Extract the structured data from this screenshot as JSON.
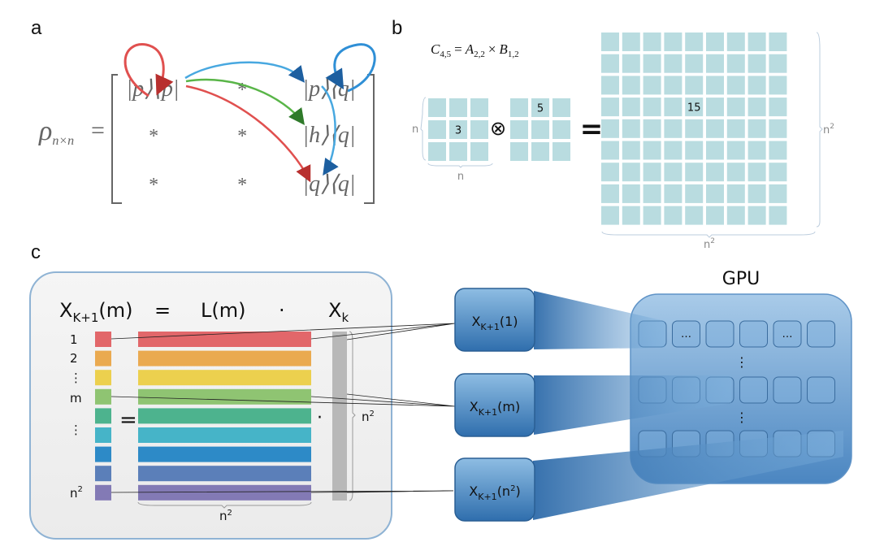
{
  "panels": {
    "a": "a",
    "b": "b",
    "c": "c"
  },
  "panel_a": {
    "lhs_symbol": "ρ",
    "lhs_subscript": "n×n",
    "equals": "=",
    "entries": [
      "|p⟩⟨p|",
      "*",
      "|p⟩⟨q|",
      "*",
      "*",
      "|h⟩⟨q|",
      "*",
      "*",
      "|q⟩⟨q|"
    ],
    "arrow_colors": {
      "red": "#e0504f",
      "blue": "#2f8fd6",
      "green": "#59b548"
    }
  },
  "panel_b": {
    "formula": {
      "c": "C",
      "c_sub": "4,5",
      "eq": "=",
      "a": "A",
      "a_sub": "2,2",
      "times": "×",
      "b": "B",
      "b_sub": "1,2"
    },
    "a_value": "3",
    "b_value": "5",
    "result_value": "15",
    "kron_symbol": "⊗",
    "equals": "=",
    "n_label": "n",
    "n2_base": "n",
    "n2_exp": "2",
    "cell_color": "#b9dce0"
  },
  "panel_c": {
    "eq_lhs": "X",
    "eq_lhs_sub": "K+1",
    "eq_lhs_arg": "(m)",
    "eq_equals": "=",
    "eq_op": "L(m)",
    "eq_dot": "·",
    "eq_rhs": "X",
    "eq_rhs_sub": "k",
    "row_labels": [
      "1",
      "2",
      "⋮",
      "m",
      "⋮",
      "n"
    ],
    "row_label_exp": "2",
    "row_colors": [
      "#e2676a",
      "#eaaa50",
      "#ecd04e",
      "#8fc472",
      "#4db38e",
      "#46b4c8",
      "#2d8ac7",
      "#5b7fb9",
      "#837ab5"
    ],
    "equals": "=",
    "dot": "·",
    "n2_base": "n",
    "n2_exp": "2",
    "gpu_title": "GPU",
    "nodes": [
      {
        "x": "X",
        "sub": "K+1",
        "arg": "(1)"
      },
      {
        "x": "X",
        "sub": "K+1",
        "arg": "(m)"
      },
      {
        "x": "X",
        "sub": "K+1",
        "arg_open": "(n",
        "arg_exp": "2",
        "arg_close": ")"
      }
    ],
    "gpu_cells_labels": [
      "…",
      "…"
    ],
    "gpu_vdots": "⋮",
    "gpu_color": "#4f8fc9"
  }
}
